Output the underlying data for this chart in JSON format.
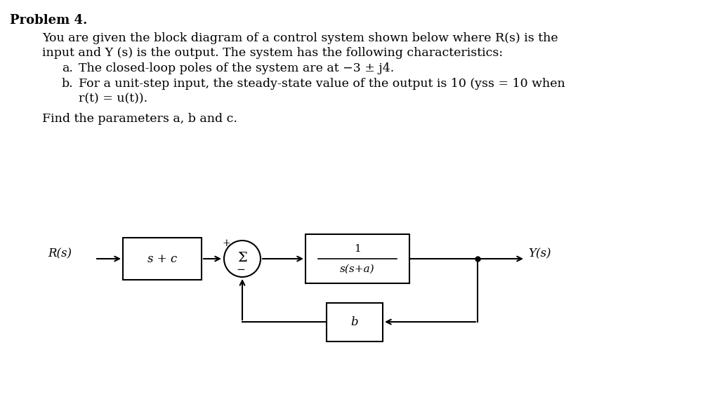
{
  "title": "Problem 4.",
  "background_color": "#ffffff",
  "text_color": "#000000",
  "line1": "You are given the block diagram of a control system shown below where R(s) is the",
  "line2": "input and Y (s) is the output. The system has the following characteristics:",
  "bullet_a_prefix": "a.",
  "bullet_a_text": "The closed-loop poles of the system are at −3 ± j4.",
  "bullet_b_prefix": "b.",
  "bullet_b_text": "For a unit-step input, the steady-state value of the output is 10 (yss = 10 when",
  "bullet_b2": "r(t) = u(t)).",
  "find_text": "Find the parameters a, b and c.",
  "block_sc_label": "s + c",
  "block_tf_num": "1",
  "block_tf_den": "s(s+a)",
  "block_b_label": "b",
  "summer_symbol": "Σ",
  "input_label": "R(s)",
  "output_label": "Y(s)",
  "plus_sign": "+",
  "minus_sign": "−",
  "figsize": [
    10.11,
    5.69
  ],
  "dpi": 100,
  "font_family": "serif",
  "title_fontsize": 13,
  "body_fontsize": 12.5,
  "diagram_fontsize": 12
}
